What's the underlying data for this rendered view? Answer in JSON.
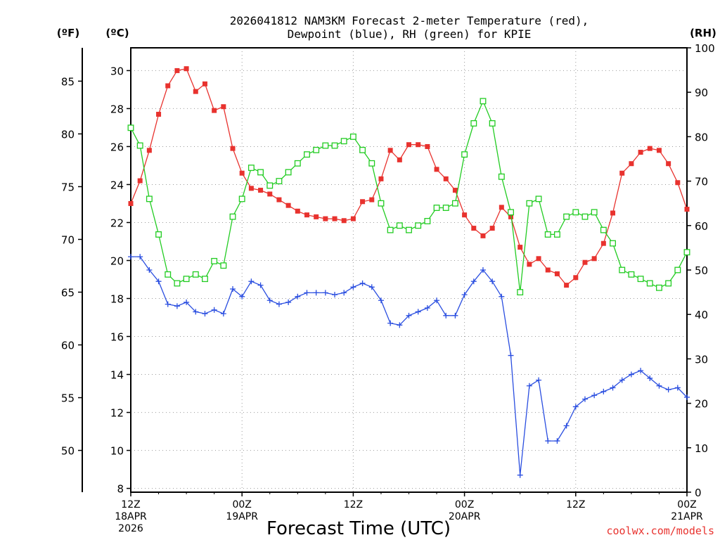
{
  "chart_data": {
    "type": "line",
    "title_line1": "2026041812 NAM3KM Forecast 2-meter Temperature (red),",
    "title_line2": "Dewpoint (blue), RH (green) for KPIE",
    "xlabel": "Forecast Time (UTC)",
    "credit": "coolwx.com/models",
    "units": {
      "fahrenheit": "(ºF)",
      "celsius": "(ºC)",
      "rh": "(RH)"
    },
    "xlim": [
      0,
      60
    ],
    "ylim_c": [
      7.8,
      31.2
    ],
    "ylim_rh": [
      0,
      100
    ],
    "celsius_ticks": [
      "8",
      "10",
      "12",
      "14",
      "16",
      "18",
      "20",
      "22",
      "24",
      "26",
      "28",
      "30"
    ],
    "fahrenheit_ticks": [
      "50",
      "55",
      "60",
      "65",
      "70",
      "75",
      "80",
      "85"
    ],
    "rh_ticks": [
      "0",
      "10",
      "20",
      "30",
      "40",
      "50",
      "60",
      "70",
      "80",
      "90",
      "100"
    ],
    "x_ticks": [
      {
        "hour": 0,
        "lines": [
          "12Z",
          "18APR",
          "2026"
        ]
      },
      {
        "hour": 12,
        "lines": [
          "00Z",
          "19APR"
        ]
      },
      {
        "hour": 24,
        "lines": [
          "12Z"
        ]
      },
      {
        "hour": 36,
        "lines": [
          "00Z",
          "20APR"
        ]
      },
      {
        "hour": 48,
        "lines": [
          "12Z"
        ]
      },
      {
        "hour": 60,
        "lines": [
          "00Z",
          "21APR"
        ]
      }
    ],
    "hours": [
      0,
      1,
      2,
      3,
      4,
      5,
      6,
      7,
      8,
      9,
      10,
      11,
      12,
      13,
      14,
      15,
      16,
      17,
      18,
      19,
      20,
      21,
      22,
      23,
      24,
      25,
      26,
      27,
      28,
      29,
      30,
      31,
      32,
      33,
      34,
      35,
      36,
      37,
      38,
      39,
      40,
      41,
      42,
      43,
      44,
      45,
      46,
      47,
      48,
      49,
      50,
      51,
      52,
      53,
      54,
      55,
      56,
      57,
      58,
      59,
      60
    ],
    "series": [
      {
        "name": "2-meter Temperature",
        "axis": "celsius",
        "color": "#e8322e",
        "marker": "filled-square",
        "values": [
          23.0,
          24.2,
          25.8,
          27.7,
          29.2,
          30.0,
          30.1,
          28.9,
          29.3,
          27.9,
          28.1,
          25.9,
          24.6,
          23.8,
          23.7,
          23.5,
          23.2,
          22.9,
          22.6,
          22.4,
          22.3,
          22.2,
          22.2,
          22.1,
          22.2,
          23.1,
          23.2,
          24.3,
          25.8,
          25.3,
          26.1,
          26.1,
          26.0,
          24.8,
          24.3,
          23.7,
          22.4,
          21.7,
          21.3,
          21.7,
          22.8,
          22.3,
          20.7,
          19.8,
          20.1,
          19.5,
          19.3,
          18.7,
          19.1,
          19.9,
          20.1,
          20.9,
          22.5,
          24.6,
          25.1,
          25.7,
          25.9,
          25.8,
          25.1,
          24.1,
          22.7
        ]
      },
      {
        "name": "Dewpoint",
        "axis": "celsius",
        "color": "#2a4ee0",
        "marker": "plus",
        "values": [
          20.2,
          20.2,
          19.5,
          18.9,
          17.7,
          17.6,
          17.8,
          17.3,
          17.2,
          17.4,
          17.2,
          18.5,
          18.1,
          18.9,
          18.7,
          17.9,
          17.7,
          17.8,
          18.1,
          18.3,
          18.3,
          18.3,
          18.2,
          18.3,
          18.6,
          18.8,
          18.6,
          17.9,
          16.7,
          16.6,
          17.1,
          17.3,
          17.5,
          17.9,
          17.1,
          17.1,
          18.2,
          18.9,
          19.5,
          18.9,
          18.1,
          15.0,
          8.7,
          13.4,
          13.7,
          10.5,
          10.5,
          11.3,
          12.3,
          12.7,
          12.9,
          13.1,
          13.3,
          13.7,
          14.0,
          14.2,
          13.8,
          13.4,
          13.2,
          13.3,
          12.8
        ]
      },
      {
        "name": "RH",
        "axis": "rh",
        "color": "#22cc22",
        "marker": "open-square",
        "values": [
          82,
          78,
          66,
          58,
          49,
          47,
          48,
          49,
          48,
          52,
          51,
          62,
          66,
          73,
          72,
          69,
          70,
          72,
          74,
          76,
          77,
          78,
          78,
          79,
          80,
          77,
          74,
          65,
          59,
          60,
          59,
          60,
          61,
          64,
          64,
          65,
          76,
          83,
          88,
          83,
          71,
          63,
          45,
          65,
          66,
          58,
          58,
          62,
          63,
          62,
          63,
          59,
          56,
          50,
          49,
          48,
          47,
          46,
          47,
          50,
          54
        ]
      }
    ]
  }
}
